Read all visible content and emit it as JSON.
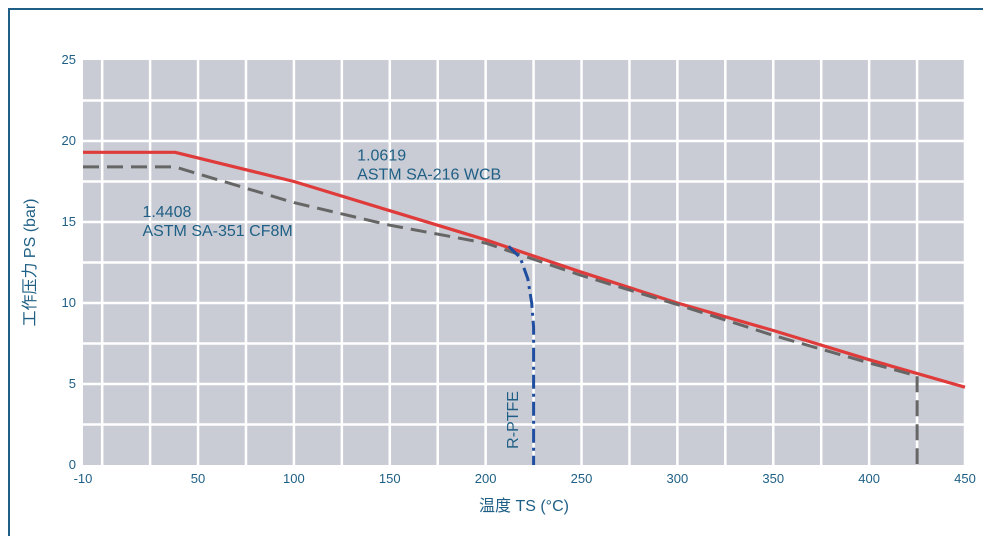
{
  "chart_data": {
    "type": "line",
    "xlabel": "温度 TS (°C)",
    "ylabel": "工作压力 PS (bar)",
    "xlim": [
      -10,
      450
    ],
    "ylim": [
      0,
      25
    ],
    "x_ticks": [
      "-10",
      "50",
      "100",
      "150",
      "200",
      "250",
      "300",
      "350",
      "400",
      "450"
    ],
    "x_tick_values": [
      -10,
      50,
      100,
      150,
      200,
      250,
      300,
      350,
      400,
      450
    ],
    "y_ticks": [
      "0",
      "5",
      "10",
      "15",
      "20",
      "25"
    ],
    "y_tick_values": [
      0,
      5,
      10,
      15,
      20,
      25
    ],
    "grid": true,
    "series": [
      {
        "name": "1.0619 ASTM SA-216 WCB",
        "color": "#e03b3b",
        "style": "solid",
        "points": [
          [
            -10,
            19.3
          ],
          [
            38,
            19.3
          ],
          [
            100,
            17.5
          ],
          [
            150,
            15.7
          ],
          [
            200,
            13.9
          ],
          [
            250,
            11.9
          ],
          [
            300,
            10.0
          ],
          [
            350,
            8.3
          ],
          [
            400,
            6.5
          ],
          [
            450,
            4.8
          ]
        ]
      },
      {
        "name": "1.4408 ASTM SA-351 CF8M",
        "color": "#666666",
        "style": "dashed",
        "points": [
          [
            -10,
            18.4
          ],
          [
            38,
            18.4
          ],
          [
            100,
            16.2
          ],
          [
            150,
            14.8
          ],
          [
            200,
            13.7
          ],
          [
            250,
            11.7
          ],
          [
            300,
            9.9
          ],
          [
            350,
            8.0
          ],
          [
            400,
            6.3
          ],
          [
            425,
            5.5
          ],
          [
            425,
            0
          ]
        ]
      },
      {
        "name": "R-PTFE",
        "color": "#1f4ea0",
        "style": "dashdot",
        "points": [
          [
            212,
            13.5
          ],
          [
            218,
            12.8
          ],
          [
            222,
            11.5
          ],
          [
            224,
            10.0
          ],
          [
            225,
            8.5
          ],
          [
            225,
            0
          ]
        ]
      }
    ],
    "annotations": [
      {
        "lines": [
          "1.0619",
          "ASTM SA-216 WCB"
        ],
        "x": 133,
        "y": 18.8
      },
      {
        "lines": [
          "1.4408",
          "ASTM SA-351 CF8M"
        ],
        "x": 21,
        "y": 15.3
      },
      {
        "text": "R-PTFE",
        "x": 217,
        "y": 1,
        "rotate": -90
      }
    ],
    "colors": {
      "plot_background": "#c9ccd4",
      "grid": "#ffffff",
      "text": "#1f5f85",
      "frame": "#1f5f85"
    }
  }
}
